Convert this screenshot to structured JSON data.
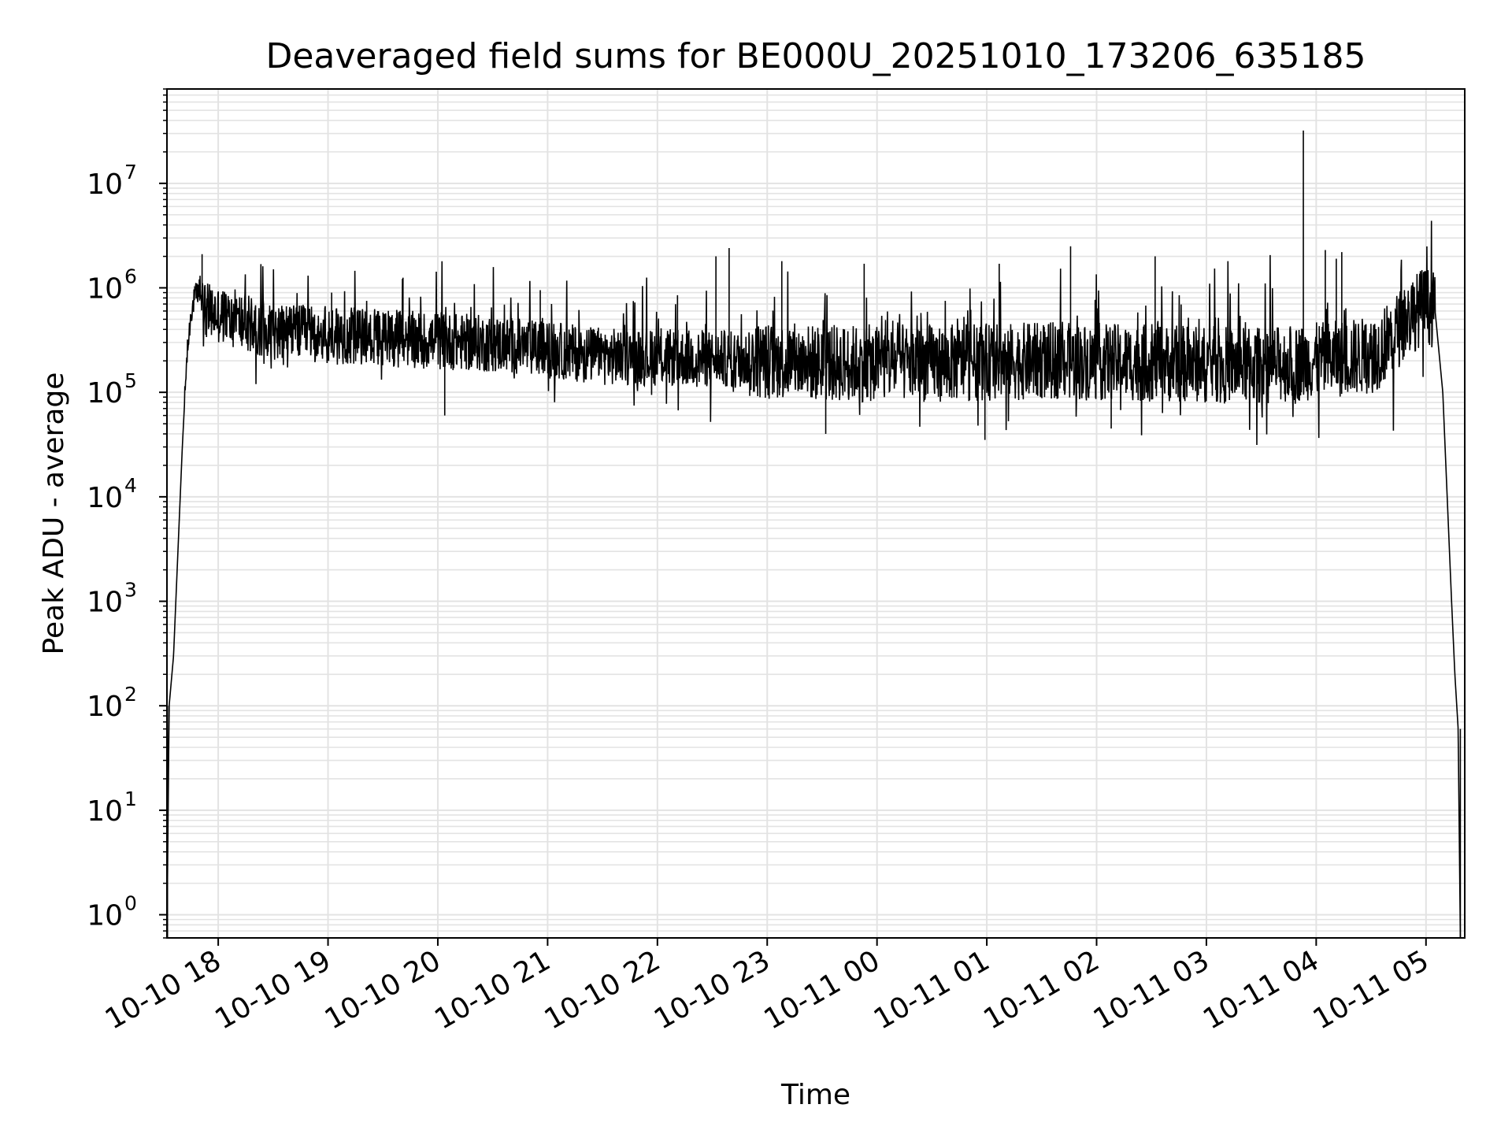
{
  "chart_data": {
    "type": "line",
    "title": "Deaveraged field sums for BE000U_20251010_173206_635185",
    "xlabel": "Time",
    "ylabel": "Peak ADU - average",
    "yscale": "log",
    "ylim": [
      0.6,
      80000000
    ],
    "x_units": "hours after 2025-10-10 17:32",
    "xlim": [
      0,
      11.82
    ],
    "grid": "major and minor",
    "line_color": "#000000",
    "grid_color": "#e3e3e3",
    "x_ticks": [
      {
        "t": 0.467,
        "label": "10-10 18"
      },
      {
        "t": 1.467,
        "label": "10-10 19"
      },
      {
        "t": 2.467,
        "label": "10-10 20"
      },
      {
        "t": 3.467,
        "label": "10-10 21"
      },
      {
        "t": 4.467,
        "label": "10-10 22"
      },
      {
        "t": 5.467,
        "label": "10-10 23"
      },
      {
        "t": 6.467,
        "label": "10-11 00"
      },
      {
        "t": 7.467,
        "label": "10-11 01"
      },
      {
        "t": 8.467,
        "label": "10-11 02"
      },
      {
        "t": 9.467,
        "label": "10-11 03"
      },
      {
        "t": 10.467,
        "label": "10-11 04"
      },
      {
        "t": 11.467,
        "label": "10-11 05"
      }
    ],
    "y_ticks": [
      {
        "value": 1,
        "base": "10",
        "exp": "0"
      },
      {
        "value": 10,
        "base": "10",
        "exp": "1"
      },
      {
        "value": 100,
        "base": "10",
        "exp": "2"
      },
      {
        "value": 1000,
        "base": "10",
        "exp": "3"
      },
      {
        "value": 10000,
        "base": "10",
        "exp": "4"
      },
      {
        "value": 100000,
        "base": "10",
        "exp": "5"
      },
      {
        "value": 1000000,
        "base": "10",
        "exp": "6"
      },
      {
        "value": 10000000,
        "base": "10",
        "exp": "7"
      }
    ],
    "series": [
      {
        "name": "Peak ADU - average",
        "envelope": [
          [
            0.0,
            0.6
          ],
          [
            0.02,
            100
          ],
          [
            0.06,
            300
          ],
          [
            0.1,
            3000
          ],
          [
            0.14,
            30000
          ],
          [
            0.18,
            200000
          ],
          [
            0.22,
            600000
          ],
          [
            0.27,
            900000
          ],
          [
            0.32,
            1000000
          ],
          [
            0.35,
            600000
          ],
          [
            1.0,
            380000
          ],
          [
            2.0,
            330000
          ],
          [
            3.0,
            290000
          ],
          [
            4.0,
            220000
          ],
          [
            5.0,
            210000
          ],
          [
            6.0,
            190000
          ],
          [
            7.0,
            190000
          ],
          [
            8.0,
            200000
          ],
          [
            9.0,
            190000
          ],
          [
            10.0,
            180000
          ],
          [
            10.5,
            200000
          ],
          [
            11.0,
            230000
          ],
          [
            11.3,
            500000
          ],
          [
            11.45,
            700000
          ],
          [
            11.55,
            600000
          ],
          [
            11.62,
            100000
          ],
          [
            11.66,
            10000
          ],
          [
            11.7,
            1000
          ],
          [
            11.73,
            200
          ],
          [
            11.76,
            60
          ],
          [
            11.78,
            0.6
          ]
        ],
        "spikes": [
          [
            10.35,
            32000000
          ],
          [
            5.12,
            2400000
          ],
          [
            8.23,
            2500000
          ],
          [
            10.55,
            2300000
          ],
          [
            10.7,
            2200000
          ],
          [
            9.0,
            2000000
          ],
          [
            0.32,
            2100000
          ],
          [
            5.0,
            2000000
          ],
          [
            2.15,
            1250000
          ],
          [
            5.6,
            1800000
          ],
          [
            6.35,
            1700000
          ],
          [
            7.58,
            1700000
          ],
          [
            10.65,
            1900000
          ],
          [
            3.4,
            950000
          ],
          [
            4.65,
            850000
          ],
          [
            1.5,
            900000
          ],
          [
            7.45,
            35000
          ],
          [
            6.0,
            40000
          ],
          [
            2.53,
            60000
          ],
          [
            8.6,
            45000
          ]
        ],
        "noise_band_decades": [
          -0.45,
          0.45
        ]
      }
    ]
  }
}
